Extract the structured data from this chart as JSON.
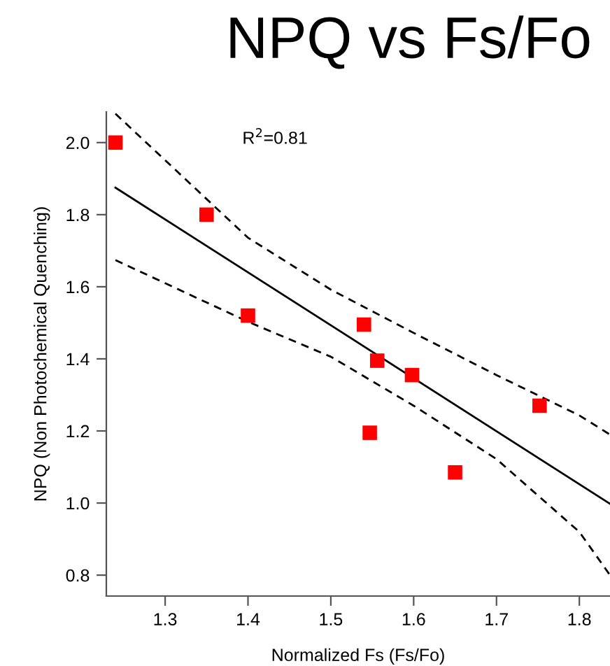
{
  "chart_data": {
    "type": "scatter",
    "title": "NPQ vs Fs/Fo",
    "xlabel": "Normalized Fs (Fs/Fo)",
    "ylabel": "NPQ (Non Photochemical Quenching)",
    "annotations": [
      "R$^{2}$=0.81"
    ],
    "xlim": [
      1.229,
      1.837
    ],
    "ylim": [
      0.742,
      2.085
    ],
    "xticks": [
      1.3,
      1.4,
      1.5,
      1.6,
      1.7,
      1.8
    ],
    "yticks": [
      {
        "value": 0.8,
        "label": "0.8"
      },
      {
        "value": 1.0,
        "label": "1.0"
      },
      {
        "value": 1.2,
        "label": "1.2"
      },
      {
        "value": 1.4,
        "label": "1.4"
      },
      {
        "value": 1.6,
        "label": "1.6"
      },
      {
        "value": 1.8,
        "label": "1.8"
      },
      {
        "value": 2.0,
        "label": "2.0"
      }
    ],
    "grid": false,
    "legend": false,
    "series": [
      {
        "color": "#ff0000",
        "marker": "square",
        "x": [
          1.24,
          1.35,
          1.4,
          1.54,
          1.547,
          1.556,
          1.598,
          1.65,
          1.752
        ],
        "values": [
          2.0,
          1.8,
          1.52,
          1.495,
          1.195,
          1.395,
          1.355,
          1.085,
          1.27
        ]
      },
      {
        "type": "line",
        "color": "#000000",
        "line_style": "solid",
        "marker": "none",
        "x": [
          1.24,
          1.837
        ],
        "values": [
          1.875,
          0.998
        ]
      },
      {
        "type": "line",
        "color": "#000000",
        "line_style": "dashed",
        "marker": "none",
        "x": [
          1.24,
          1.4,
          1.5,
          1.6,
          1.7,
          1.8,
          1.837
        ],
        "values": [
          2.08,
          1.736,
          1.592,
          1.472,
          1.355,
          1.243,
          1.19
        ]
      },
      {
        "type": "line",
        "color": "#000000",
        "line_style": "dashed",
        "marker": "none",
        "x": [
          1.24,
          1.4,
          1.5,
          1.6,
          1.7,
          1.8,
          1.837
        ],
        "values": [
          1.674,
          1.503,
          1.406,
          1.27,
          1.122,
          0.92,
          0.8
        ]
      }
    ]
  }
}
